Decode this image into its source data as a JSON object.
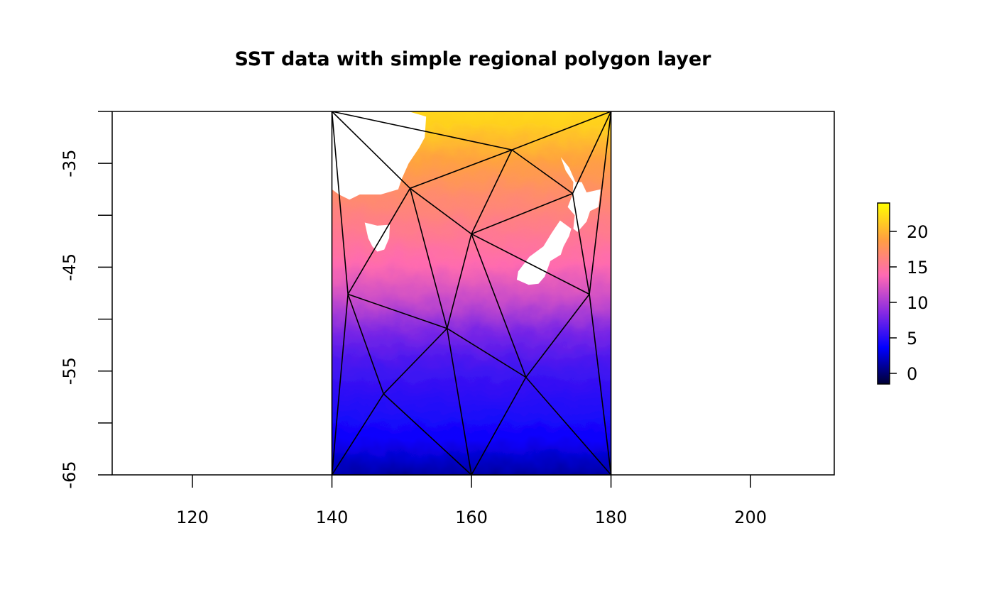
{
  "chart_data": {
    "type": "heatmap",
    "title": "SST data with simple regional polygon layer",
    "xlabel": "",
    "ylabel": "",
    "xlim": [
      108.5,
      212
    ],
    "ylim": [
      -65,
      -30
    ],
    "x_ticks": [
      120,
      140,
      160,
      180,
      200
    ],
    "x_tick_labels": [
      "120",
      "140",
      "160",
      "180",
      "200"
    ],
    "y_ticks": [
      -65,
      -60,
      -55,
      -50,
      -45,
      -40,
      -35,
      -30
    ],
    "y_tick_labels": [
      "-65",
      "",
      "-55",
      "",
      "-45",
      "",
      "-35",
      ""
    ],
    "raster_extent": {
      "xmin": 140,
      "xmax": 180,
      "ymin": -65,
      "ymax": -30
    },
    "colorbar": {
      "range": [
        -1.5,
        24
      ],
      "ticks": [
        0,
        5,
        10,
        15,
        20
      ],
      "tick_labels": [
        "0",
        "5",
        "10",
        "15",
        "20"
      ],
      "colors": [
        "#000033",
        "#0000ff",
        "#8a2be2",
        "#ff69b4",
        "#ffa040",
        "#ffff00"
      ]
    },
    "sst_by_latitude": [
      {
        "lat": -30,
        "value": 22.5
      },
      {
        "lat": -33,
        "value": 21.5
      },
      {
        "lat": -36,
        "value": 19
      },
      {
        "lat": -39,
        "value": 17
      },
      {
        "lat": -42,
        "value": 15.5
      },
      {
        "lat": -45,
        "value": 14
      },
      {
        "lat": -48,
        "value": 11.5
      },
      {
        "lat": -51,
        "value": 8
      },
      {
        "lat": -54,
        "value": 6
      },
      {
        "lat": -57,
        "value": 5
      },
      {
        "lat": -60,
        "value": 4
      },
      {
        "lat": -63,
        "value": 1.5
      },
      {
        "lat": -65,
        "value": -1
      }
    ],
    "land": [
      {
        "name": "australia",
        "coords": [
          [
            140,
            -30
          ],
          [
            151,
            -30
          ],
          [
            153.5,
            -30.5
          ],
          [
            153.3,
            -32.5
          ],
          [
            152.5,
            -33.5
          ],
          [
            151,
            -35
          ],
          [
            150,
            -36.5
          ],
          [
            149.5,
            -37.5
          ],
          [
            147,
            -38
          ],
          [
            144,
            -38
          ],
          [
            142.5,
            -38.5
          ],
          [
            141,
            -38
          ],
          [
            140,
            -37.5
          ]
        ]
      },
      {
        "name": "tasmania",
        "coords": [
          [
            144.7,
            -40.7
          ],
          [
            146.5,
            -41
          ],
          [
            148.3,
            -40.9
          ],
          [
            148.2,
            -42.2
          ],
          [
            147.5,
            -43.3
          ],
          [
            146.5,
            -43.5
          ],
          [
            145.8,
            -43
          ],
          [
            145.2,
            -42.2
          ]
        ]
      },
      {
        "name": "new-zealand-north-island",
        "coords": [
          [
            172.8,
            -34.4
          ],
          [
            174,
            -35.4
          ],
          [
            174.9,
            -36.8
          ],
          [
            175.8,
            -36.8
          ],
          [
            176.5,
            -37.8
          ],
          [
            178.5,
            -37.5
          ],
          [
            178.2,
            -39.2
          ],
          [
            177,
            -39.6
          ],
          [
            176.5,
            -40.6
          ],
          [
            175.2,
            -41.6
          ],
          [
            174.6,
            -41.3
          ],
          [
            174.8,
            -40
          ],
          [
            173.8,
            -39.2
          ],
          [
            174.5,
            -38
          ],
          [
            174.6,
            -36.8
          ],
          [
            173.5,
            -35.7
          ]
        ]
      },
      {
        "name": "new-zealand-south-island",
        "coords": [
          [
            172.7,
            -40.5
          ],
          [
            174.3,
            -41.3
          ],
          [
            174,
            -42
          ],
          [
            173.2,
            -43
          ],
          [
            172.8,
            -43.8
          ],
          [
            171.3,
            -44.4
          ],
          [
            171,
            -45
          ],
          [
            170.5,
            -45.9
          ],
          [
            169.6,
            -46.6
          ],
          [
            168.2,
            -46.7
          ],
          [
            166.5,
            -46.2
          ],
          [
            166.7,
            -45.4
          ],
          [
            168.3,
            -44
          ],
          [
            170.3,
            -43
          ],
          [
            171.5,
            -41.7
          ]
        ]
      }
    ],
    "polygon_vertices": [
      [
        140,
        -30
      ],
      [
        180,
        -30
      ],
      [
        140,
        -65
      ],
      [
        160,
        -65
      ],
      [
        180,
        -65
      ],
      [
        151.2,
        -37.4
      ],
      [
        165.8,
        -33.7
      ],
      [
        174.5,
        -37.9
      ],
      [
        160,
        -41.8
      ],
      [
        142.3,
        -47.6
      ],
      [
        176.9,
        -47.6
      ],
      [
        156.5,
        -50.9
      ],
      [
        167.8,
        -55.6
      ],
      [
        147.4,
        -57.2
      ]
    ],
    "polygon_edges": [
      [
        0,
        6
      ],
      [
        6,
        1
      ],
      [
        0,
        5
      ],
      [
        5,
        6
      ],
      [
        6,
        7
      ],
      [
        7,
        1
      ],
      [
        1,
        4
      ],
      [
        1,
        10
      ],
      [
        0,
        9
      ],
      [
        0,
        2
      ],
      [
        5,
        9
      ],
      [
        5,
        8
      ],
      [
        5,
        11
      ],
      [
        6,
        8
      ],
      [
        7,
        8
      ],
      [
        7,
        10
      ],
      [
        8,
        11
      ],
      [
        8,
        10
      ],
      [
        8,
        12
      ],
      [
        9,
        11
      ],
      [
        9,
        13
      ],
      [
        9,
        2
      ],
      [
        11,
        13
      ],
      [
        11,
        3
      ],
      [
        11,
        12
      ],
      [
        10,
        12
      ],
      [
        10,
        4
      ],
      [
        12,
        3
      ],
      [
        12,
        4
      ],
      [
        13,
        2
      ],
      [
        13,
        3
      ],
      [
        2,
        3
      ],
      [
        3,
        4
      ]
    ]
  }
}
